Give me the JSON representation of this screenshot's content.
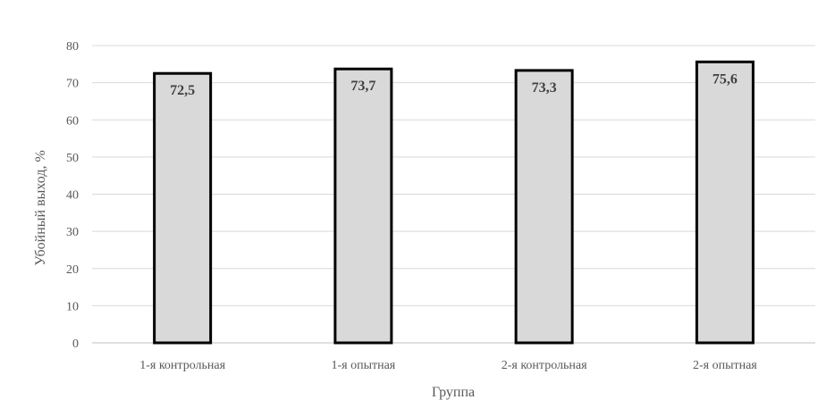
{
  "chart_data": {
    "type": "bar",
    "categories": [
      "1-я контрольная",
      "1-я опытная",
      "2-я контрольная",
      "2-я опытная"
    ],
    "values": [
      72.5,
      73.7,
      73.3,
      75.6
    ],
    "data_labels": [
      "72,5",
      "73,7",
      "73,3",
      "75,6"
    ],
    "xlabel": "Группа",
    "ylabel": "Убойный выход, %",
    "ylim": [
      0,
      80
    ],
    "yticks": [
      0,
      10,
      20,
      30,
      40,
      50,
      60,
      70,
      80
    ],
    "grid": true,
    "legend": "none",
    "colors": {
      "bar_fill": "#d9d9d9",
      "bar_stroke": "#000000",
      "grid": "#d9d9d9"
    }
  }
}
